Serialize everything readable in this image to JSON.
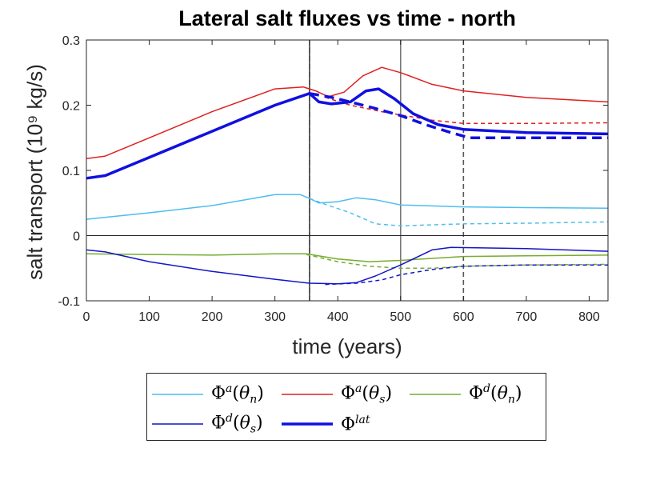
{
  "chart_data": {
    "type": "line",
    "title": "Lateral salt fluxes vs time - north",
    "xlabel": "time (years)",
    "ylabel": "salt transport (10⁹ kg/s)",
    "xlim": [
      0,
      830
    ],
    "ylim": [
      -0.1,
      0.3
    ],
    "xticks": [
      "0",
      "100",
      "200",
      "300",
      "400",
      "500",
      "600",
      "700",
      "800"
    ],
    "yticks": [
      "-0.1",
      "0",
      "0.1",
      "0.2",
      "0.3"
    ],
    "zero_line": true,
    "vertical_lines": [
      {
        "x": 355,
        "style": "solid",
        "color": "#444444"
      },
      {
        "x": 500,
        "style": "solid",
        "color": "#777777"
      },
      {
        "x": 355,
        "style": "dashed",
        "color": "#444444"
      },
      {
        "x": 600,
        "style": "dashed",
        "color": "#555555"
      }
    ],
    "legend": {
      "position": "below",
      "columns": 3
    },
    "series": [
      {
        "legend": {
          "sym": "Φ",
          "sup": "a",
          "arg": "n"
        },
        "color": "#4DBEEE",
        "width": 1.5,
        "dash": false,
        "points": [
          [
            0,
            0.025
          ],
          [
            100,
            0.035
          ],
          [
            200,
            0.046
          ],
          [
            300,
            0.063
          ],
          [
            340,
            0.063
          ],
          [
            355,
            0.057
          ],
          [
            370,
            0.05
          ],
          [
            400,
            0.052
          ],
          [
            430,
            0.058
          ],
          [
            460,
            0.055
          ],
          [
            500,
            0.047
          ],
          [
            600,
            0.044
          ],
          [
            700,
            0.043
          ],
          [
            830,
            0.042
          ]
        ]
      },
      {
        "legend": null,
        "color": "#4DBEEE",
        "width": 1.5,
        "dash": true,
        "points": [
          [
            355,
            0.057
          ],
          [
            380,
            0.048
          ],
          [
            420,
            0.035
          ],
          [
            460,
            0.018
          ],
          [
            500,
            0.015
          ],
          [
            600,
            0.018
          ],
          [
            700,
            0.019
          ],
          [
            830,
            0.021
          ]
        ]
      },
      {
        "legend": {
          "sym": "Φ",
          "sup": "a",
          "arg": "s"
        },
        "color": "#E02020",
        "width": 1.5,
        "dash": false,
        "points": [
          [
            0,
            0.118
          ],
          [
            30,
            0.122
          ],
          [
            100,
            0.15
          ],
          [
            200,
            0.19
          ],
          [
            300,
            0.225
          ],
          [
            345,
            0.228
          ],
          [
            365,
            0.222
          ],
          [
            385,
            0.213
          ],
          [
            410,
            0.22
          ],
          [
            440,
            0.245
          ],
          [
            470,
            0.258
          ],
          [
            500,
            0.25
          ],
          [
            550,
            0.232
          ],
          [
            600,
            0.222
          ],
          [
            700,
            0.212
          ],
          [
            830,
            0.205
          ]
        ]
      },
      {
        "legend": null,
        "color": "#E02020",
        "width": 1.5,
        "dash": true,
        "points": [
          [
            380,
            0.212
          ],
          [
            420,
            0.2
          ],
          [
            470,
            0.19
          ],
          [
            500,
            0.185
          ],
          [
            550,
            0.177
          ],
          [
            600,
            0.172
          ],
          [
            700,
            0.172
          ],
          [
            830,
            0.173
          ]
        ]
      },
      {
        "legend": {
          "sym": "Φ",
          "sup": "d",
          "arg": "n"
        },
        "color": "#77AC30",
        "width": 1.5,
        "dash": false,
        "points": [
          [
            0,
            -0.028
          ],
          [
            100,
            -0.029
          ],
          [
            200,
            -0.03
          ],
          [
            300,
            -0.028
          ],
          [
            350,
            -0.028
          ],
          [
            400,
            -0.036
          ],
          [
            450,
            -0.04
          ],
          [
            500,
            -0.038
          ],
          [
            550,
            -0.035
          ],
          [
            600,
            -0.032
          ],
          [
            700,
            -0.031
          ],
          [
            830,
            -0.03
          ]
        ]
      },
      {
        "legend": null,
        "color": "#77AC30",
        "width": 1.5,
        "dash": true,
        "points": [
          [
            350,
            -0.029
          ],
          [
            400,
            -0.04
          ],
          [
            450,
            -0.047
          ],
          [
            500,
            -0.05
          ],
          [
            550,
            -0.05
          ],
          [
            600,
            -0.047
          ],
          [
            700,
            -0.045
          ],
          [
            830,
            -0.044
          ]
        ]
      },
      {
        "legend": {
          "sym": "Φ",
          "sup": "d",
          "arg": "s"
        },
        "color": "#1515C8",
        "width": 1.5,
        "dash": false,
        "points": [
          [
            0,
            -0.022
          ],
          [
            30,
            -0.025
          ],
          [
            100,
            -0.04
          ],
          [
            200,
            -0.055
          ],
          [
            300,
            -0.067
          ],
          [
            355,
            -0.073
          ],
          [
            400,
            -0.074
          ],
          [
            430,
            -0.072
          ],
          [
            460,
            -0.062
          ],
          [
            500,
            -0.045
          ],
          [
            550,
            -0.022
          ],
          [
            580,
            -0.018
          ],
          [
            700,
            -0.02
          ],
          [
            830,
            -0.024
          ]
        ]
      },
      {
        "legend": null,
        "color": "#1515C8",
        "width": 1.5,
        "dash": true,
        "points": [
          [
            380,
            -0.075
          ],
          [
            430,
            -0.073
          ],
          [
            470,
            -0.068
          ],
          [
            500,
            -0.06
          ],
          [
            550,
            -0.052
          ],
          [
            600,
            -0.047
          ],
          [
            700,
            -0.045
          ],
          [
            830,
            -0.045
          ]
        ]
      },
      {
        "legend": {
          "sym": "Φ",
          "sup": "lat",
          "arg": ""
        },
        "color": "#1010E0",
        "width": 3.5,
        "dash": false,
        "points": [
          [
            0,
            0.088
          ],
          [
            30,
            0.092
          ],
          [
            100,
            0.12
          ],
          [
            200,
            0.16
          ],
          [
            300,
            0.2
          ],
          [
            355,
            0.218
          ],
          [
            370,
            0.205
          ],
          [
            390,
            0.202
          ],
          [
            420,
            0.205
          ],
          [
            445,
            0.222
          ],
          [
            465,
            0.225
          ],
          [
            490,
            0.21
          ],
          [
            520,
            0.187
          ],
          [
            560,
            0.17
          ],
          [
            600,
            0.163
          ],
          [
            700,
            0.158
          ],
          [
            830,
            0.156
          ]
        ]
      },
      {
        "legend": null,
        "color": "#1010E0",
        "width": 3.5,
        "dash": true,
        "points": [
          [
            355,
            0.218
          ],
          [
            390,
            0.212
          ],
          [
            420,
            0.205
          ],
          [
            460,
            0.195
          ],
          [
            500,
            0.184
          ],
          [
            540,
            0.17
          ],
          [
            580,
            0.158
          ],
          [
            610,
            0.15
          ],
          [
            700,
            0.15
          ],
          [
            830,
            0.15
          ]
        ]
      }
    ]
  }
}
